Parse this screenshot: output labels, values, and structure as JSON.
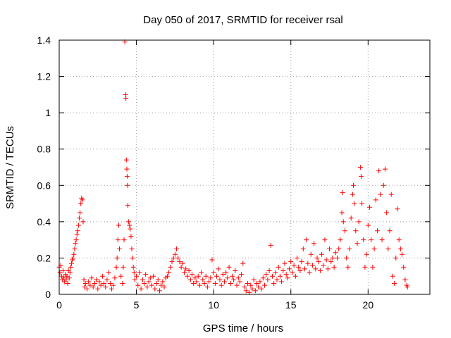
{
  "chart_data": {
    "type": "scatter",
    "title": "Day 050 of 2017, SRMTID for receiver rsal",
    "xlabel": "GPS time / hours",
    "ylabel": "SRMTID / TECUs",
    "xlim": [
      0,
      24
    ],
    "ylim": [
      0,
      1.4
    ],
    "xticks": [
      0,
      5,
      10,
      15,
      20
    ],
    "xtick_labels": [
      "0",
      "5",
      "10",
      "15",
      "20"
    ],
    "yticks": [
      0,
      0.2,
      0.4,
      0.6,
      0.8,
      1,
      1.2,
      1.4
    ],
    "ytick_labels": [
      "0",
      "0.2",
      "0.4",
      "0.6",
      "0.8",
      "1",
      "1.2",
      "1.4"
    ],
    "grid": true,
    "marker": "+",
    "color": "#ff0000",
    "series": [
      {
        "name": "SRMTID",
        "points": [
          [
            0.0,
            0.15
          ],
          [
            0.05,
            0.12
          ],
          [
            0.1,
            0.16
          ],
          [
            0.15,
            0.1
          ],
          [
            0.2,
            0.08
          ],
          [
            0.25,
            0.13
          ],
          [
            0.3,
            0.09
          ],
          [
            0.35,
            0.07
          ],
          [
            0.4,
            0.11
          ],
          [
            0.45,
            0.08
          ],
          [
            0.5,
            0.1
          ],
          [
            0.55,
            0.06
          ],
          [
            0.6,
            0.13
          ],
          [
            0.65,
            0.09
          ],
          [
            0.7,
            0.12
          ],
          [
            0.75,
            0.15
          ],
          [
            0.8,
            0.17
          ],
          [
            0.85,
            0.19
          ],
          [
            0.9,
            0.2
          ],
          [
            0.95,
            0.22
          ],
          [
            1.0,
            0.25
          ],
          [
            1.05,
            0.28
          ],
          [
            1.1,
            0.3
          ],
          [
            1.15,
            0.33
          ],
          [
            1.2,
            0.35
          ],
          [
            1.25,
            0.38
          ],
          [
            1.3,
            0.42
          ],
          [
            1.35,
            0.45
          ],
          [
            1.4,
            0.5
          ],
          [
            1.45,
            0.53
          ],
          [
            1.5,
            0.52
          ],
          [
            1.55,
            0.4
          ],
          [
            1.6,
            0.08
          ],
          [
            1.65,
            0.04
          ],
          [
            1.7,
            0.06
          ],
          [
            1.8,
            0.03
          ],
          [
            1.9,
            0.07
          ],
          [
            2.0,
            0.05
          ],
          [
            2.1,
            0.09
          ],
          [
            2.2,
            0.04
          ],
          [
            2.3,
            0.06
          ],
          [
            2.4,
            0.08
          ],
          [
            2.5,
            0.03
          ],
          [
            2.6,
            0.07
          ],
          [
            2.7,
            0.05
          ],
          [
            2.8,
            0.1
          ],
          [
            2.9,
            0.06
          ],
          [
            3.0,
            0.04
          ],
          [
            3.1,
            0.08
          ],
          [
            3.2,
            0.12
          ],
          [
            3.3,
            0.06
          ],
          [
            3.4,
            0.03
          ],
          [
            3.5,
            0.05
          ],
          [
            3.6,
            0.09
          ],
          [
            3.7,
            0.15
          ],
          [
            3.75,
            0.2
          ],
          [
            3.8,
            0.3
          ],
          [
            3.85,
            0.38
          ],
          [
            3.9,
            0.25
          ],
          [
            4.0,
            0.1
          ],
          [
            4.1,
            0.06
          ],
          [
            4.15,
            0.15
          ],
          [
            4.2,
            0.3
          ],
          [
            4.25,
            1.39
          ],
          [
            4.3,
            1.1
          ],
          [
            4.32,
            1.08
          ],
          [
            4.35,
            0.74
          ],
          [
            4.38,
            0.69
          ],
          [
            4.4,
            0.65
          ],
          [
            4.42,
            0.6
          ],
          [
            4.45,
            0.49
          ],
          [
            4.5,
            0.4
          ],
          [
            4.55,
            0.38
          ],
          [
            4.6,
            0.36
          ],
          [
            4.65,
            0.32
          ],
          [
            4.7,
            0.25
          ],
          [
            4.75,
            0.2
          ],
          [
            4.8,
            0.15
          ],
          [
            4.85,
            0.12
          ],
          [
            4.9,
            0.08
          ],
          [
            5.0,
            0.1
          ],
          [
            5.1,
            0.05
          ],
          [
            5.2,
            0.12
          ],
          [
            5.3,
            0.03
          ],
          [
            5.4,
            0.08
          ],
          [
            5.5,
            0.06
          ],
          [
            5.6,
            0.11
          ],
          [
            5.7,
            0.04
          ],
          [
            5.8,
            0.07
          ],
          [
            5.9,
            0.09
          ],
          [
            6.0,
            0.05
          ],
          [
            6.1,
            0.1
          ],
          [
            6.2,
            0.03
          ],
          [
            6.3,
            0.06
          ],
          [
            6.4,
            0.08
          ],
          [
            6.5,
            0.02
          ],
          [
            6.6,
            0.05
          ],
          [
            6.7,
            0.07
          ],
          [
            6.8,
            0.04
          ],
          [
            6.9,
            0.09
          ],
          [
            7.0,
            0.1
          ],
          [
            7.1,
            0.12
          ],
          [
            7.2,
            0.15
          ],
          [
            7.3,
            0.18
          ],
          [
            7.4,
            0.2
          ],
          [
            7.5,
            0.22
          ],
          [
            7.6,
            0.25
          ],
          [
            7.7,
            0.2
          ],
          [
            7.8,
            0.18
          ],
          [
            7.9,
            0.15
          ],
          [
            8.0,
            0.17
          ],
          [
            8.1,
            0.12
          ],
          [
            8.2,
            0.14
          ],
          [
            8.3,
            0.1
          ],
          [
            8.4,
            0.13
          ],
          [
            8.5,
            0.08
          ],
          [
            8.6,
            0.11
          ],
          [
            8.7,
            0.06
          ],
          [
            8.8,
            0.09
          ],
          [
            8.9,
            0.07
          ],
          [
            9.0,
            0.1
          ],
          [
            9.1,
            0.05
          ],
          [
            9.2,
            0.12
          ],
          [
            9.3,
            0.08
          ],
          [
            9.4,
            0.06
          ],
          [
            9.5,
            0.1
          ],
          [
            9.6,
            0.04
          ],
          [
            9.7,
            0.07
          ],
          [
            9.8,
            0.09
          ],
          [
            9.9,
            0.19
          ],
          [
            10.0,
            0.12
          ],
          [
            10.1,
            0.06
          ],
          [
            10.2,
            0.1
          ],
          [
            10.3,
            0.14
          ],
          [
            10.4,
            0.08
          ],
          [
            10.5,
            0.05
          ],
          [
            10.6,
            0.11
          ],
          [
            10.7,
            0.07
          ],
          [
            10.8,
            0.12
          ],
          [
            10.9,
            0.09
          ],
          [
            11.0,
            0.15
          ],
          [
            11.1,
            0.06
          ],
          [
            11.2,
            0.1
          ],
          [
            11.3,
            0.08
          ],
          [
            11.4,
            0.13
          ],
          [
            11.5,
            0.05
          ],
          [
            11.6,
            0.09
          ],
          [
            11.7,
            0.07
          ],
          [
            11.8,
            0.11
          ],
          [
            11.9,
            0.17
          ],
          [
            12.0,
            0.04
          ],
          [
            12.1,
            0.02
          ],
          [
            12.2,
            0.06
          ],
          [
            12.3,
            0.01
          ],
          [
            12.4,
            0.05
          ],
          [
            12.5,
            0.03
          ],
          [
            12.6,
            0.08
          ],
          [
            12.7,
            0.02
          ],
          [
            12.8,
            0.06
          ],
          [
            12.9,
            0.04
          ],
          [
            13.0,
            0.07
          ],
          [
            13.1,
            0.03
          ],
          [
            13.2,
            0.09
          ],
          [
            13.3,
            0.05
          ],
          [
            13.4,
            0.11
          ],
          [
            13.5,
            0.08
          ],
          [
            13.6,
            0.13
          ],
          [
            13.7,
            0.27
          ],
          [
            13.8,
            0.1
          ],
          [
            13.9,
            0.06
          ],
          [
            14.0,
            0.12
          ],
          [
            14.1,
            0.08
          ],
          [
            14.2,
            0.15
          ],
          [
            14.3,
            0.1
          ],
          [
            14.4,
            0.07
          ],
          [
            14.5,
            0.13
          ],
          [
            14.6,
            0.17
          ],
          [
            14.7,
            0.11
          ],
          [
            14.8,
            0.09
          ],
          [
            14.9,
            0.14
          ],
          [
            15.0,
            0.18
          ],
          [
            15.1,
            0.12
          ],
          [
            15.2,
            0.16
          ],
          [
            15.3,
            0.1
          ],
          [
            15.4,
            0.2
          ],
          [
            15.5,
            0.15
          ],
          [
            15.6,
            0.13
          ],
          [
            15.7,
            0.18
          ],
          [
            15.8,
            0.25
          ],
          [
            15.9,
            0.14
          ],
          [
            16.0,
            0.3
          ],
          [
            16.1,
            0.17
          ],
          [
            16.2,
            0.12
          ],
          [
            16.3,
            0.22
          ],
          [
            16.4,
            0.16
          ],
          [
            16.5,
            0.28
          ],
          [
            16.6,
            0.14
          ],
          [
            16.7,
            0.2
          ],
          [
            16.8,
            0.18
          ],
          [
            16.9,
            0.13
          ],
          [
            17.0,
            0.22
          ],
          [
            17.1,
            0.16
          ],
          [
            17.2,
            0.3
          ],
          [
            17.3,
            0.19
          ],
          [
            17.4,
            0.14
          ],
          [
            17.5,
            0.25
          ],
          [
            17.6,
            0.18
          ],
          [
            17.7,
            0.2
          ],
          [
            17.8,
            0.15
          ],
          [
            17.9,
            0.23
          ],
          [
            18.0,
            0.2
          ],
          [
            18.1,
            0.25
          ],
          [
            18.2,
            0.3
          ],
          [
            18.3,
            0.45
          ],
          [
            18.35,
            0.56
          ],
          [
            18.4,
            0.4
          ],
          [
            18.5,
            0.35
          ],
          [
            18.6,
            0.2
          ],
          [
            18.7,
            0.15
          ],
          [
            18.8,
            0.25
          ],
          [
            18.9,
            0.42
          ],
          [
            19.0,
            0.55
          ],
          [
            19.05,
            0.6
          ],
          [
            19.1,
            0.5
          ],
          [
            19.2,
            0.35
          ],
          [
            19.3,
            0.28
          ],
          [
            19.4,
            0.4
          ],
          [
            19.5,
            0.7
          ],
          [
            19.55,
            0.65
          ],
          [
            19.6,
            0.5
          ],
          [
            19.7,
            0.3
          ],
          [
            19.8,
            0.15
          ],
          [
            19.9,
            0.22
          ],
          [
            20.0,
            0.38
          ],
          [
            20.1,
            0.48
          ],
          [
            20.2,
            0.3
          ],
          [
            20.3,
            0.15
          ],
          [
            20.4,
            0.25
          ],
          [
            20.5,
            0.52
          ],
          [
            20.6,
            0.35
          ],
          [
            20.7,
            0.68
          ],
          [
            20.8,
            0.55
          ],
          [
            20.9,
            0.3
          ],
          [
            21.0,
            0.6
          ],
          [
            21.1,
            0.69
          ],
          [
            21.2,
            0.45
          ],
          [
            21.3,
            0.25
          ],
          [
            21.4,
            0.35
          ],
          [
            21.5,
            0.55
          ],
          [
            21.6,
            0.1
          ],
          [
            21.7,
            0.06
          ],
          [
            21.8,
            0.2
          ],
          [
            21.9,
            0.47
          ],
          [
            22.0,
            0.3
          ],
          [
            22.1,
            0.25
          ],
          [
            22.2,
            0.22
          ],
          [
            22.3,
            0.15
          ],
          [
            22.4,
            0.08
          ],
          [
            22.5,
            0.05
          ],
          [
            22.55,
            0.04
          ]
        ]
      }
    ]
  }
}
